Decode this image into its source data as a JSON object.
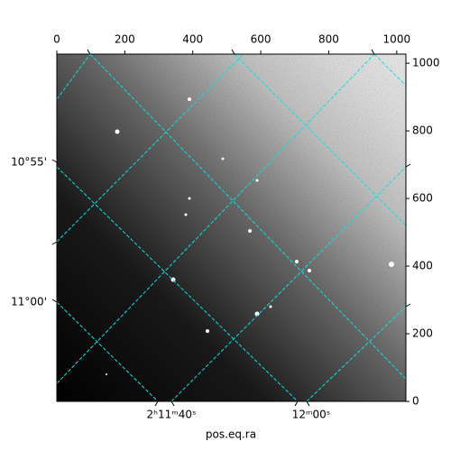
{
  "chart_data": {
    "type": "image",
    "xlim": [
      0,
      1027
    ],
    "ylim": [
      0,
      1027
    ],
    "xticks": [
      0,
      200,
      400,
      600,
      800,
      1000
    ],
    "yticks": [
      0,
      200,
      400,
      600,
      800,
      1000
    ],
    "ra_tick_labels": [
      "2ʰ11ᵐ40ˢ",
      "12ᵐ00ˢ"
    ],
    "dec_tick_labels": [
      "10°55'",
      "11°00'"
    ],
    "xlabel": "pos.eq.ra",
    "grid_color": "#00e5e5"
  }
}
